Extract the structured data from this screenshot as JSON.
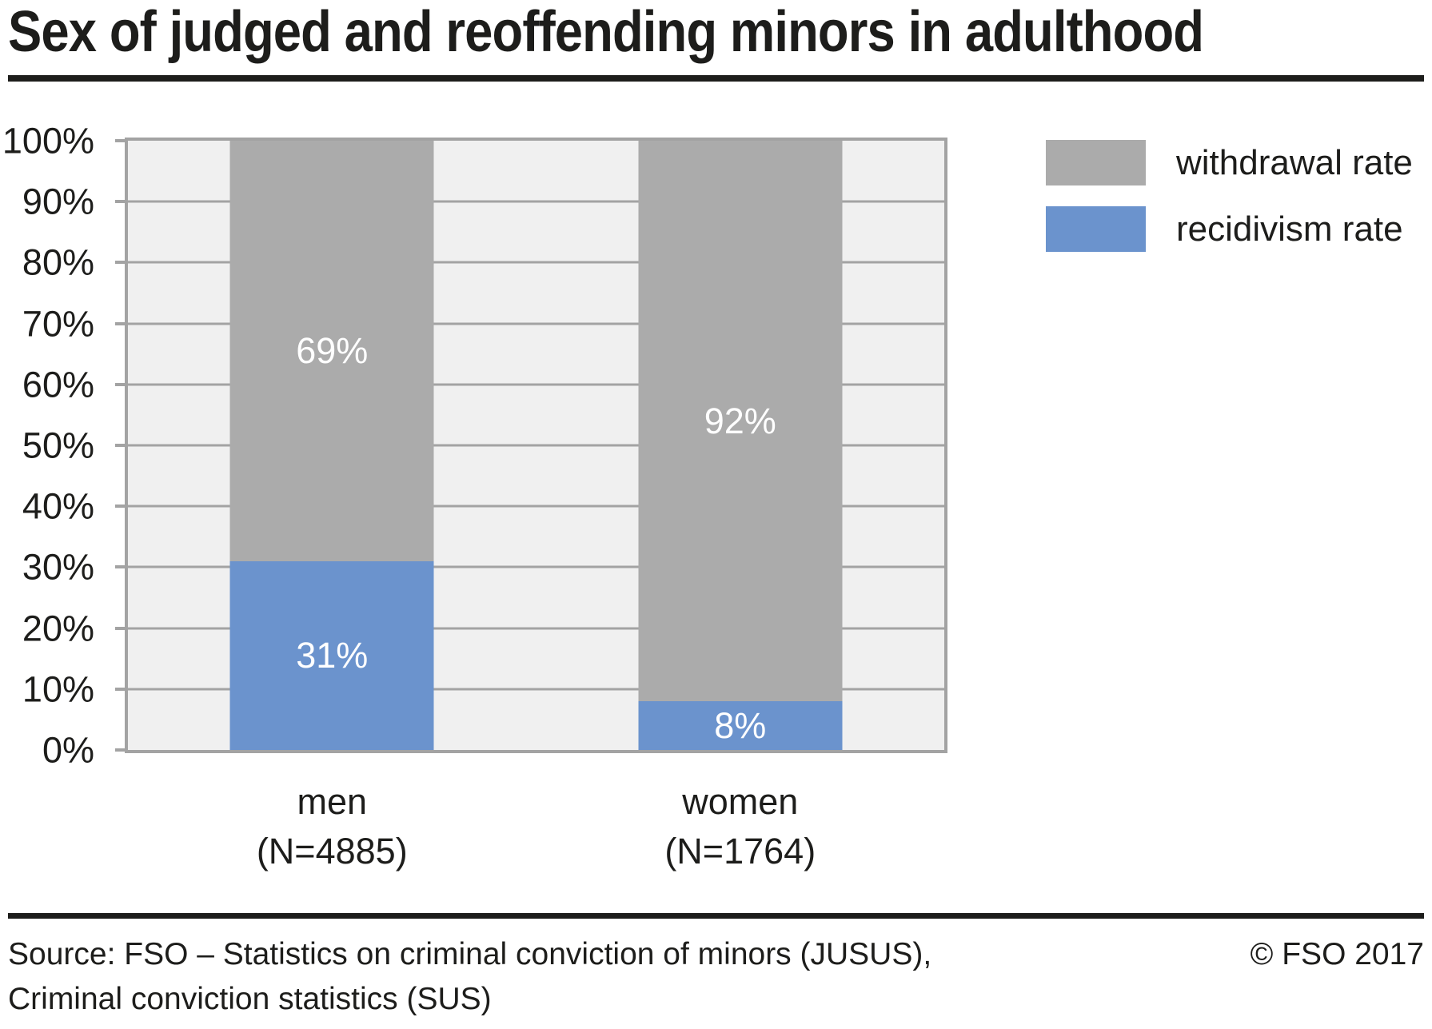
{
  "title": "Sex of judged and reoffending minors in adulthood",
  "chart_data": {
    "type": "bar",
    "stacked": true,
    "title": "Sex of judged and reoffending minors in adulthood",
    "categories": [
      "men",
      "women"
    ],
    "category_sublabels": [
      "(N=4885)",
      "(N=1764)"
    ],
    "series": [
      {
        "name": "recidivism rate",
        "color": "#6b93cd",
        "values": [
          31,
          8
        ]
      },
      {
        "name": "withdrawal rate",
        "color": "#ababab",
        "values": [
          69,
          92
        ]
      }
    ],
    "value_suffix": "%",
    "ylim": [
      0,
      100
    ],
    "ytick_labels": [
      "0%",
      "10%",
      "20%",
      "30%",
      "40%",
      "50%",
      "60%",
      "70%",
      "80%",
      "90%",
      "100%"
    ],
    "grid": true,
    "grid_color": "#a3a3a3",
    "plot_background": "#f0f0f0",
    "legend_position": "top-right",
    "legend": [
      {
        "label": "withdrawal rate",
        "color": "#ababab"
      },
      {
        "label": "recidivism rate",
        "color": "#6b93cd"
      }
    ],
    "xlabel": "",
    "ylabel": ""
  },
  "footer": {
    "source_line1": "Source: FSO – Statistics on criminal conviction of minors (JUSUS),",
    "source_line2": "Criminal conviction statistics (SUS)",
    "copyright": "© FSO 2017"
  }
}
